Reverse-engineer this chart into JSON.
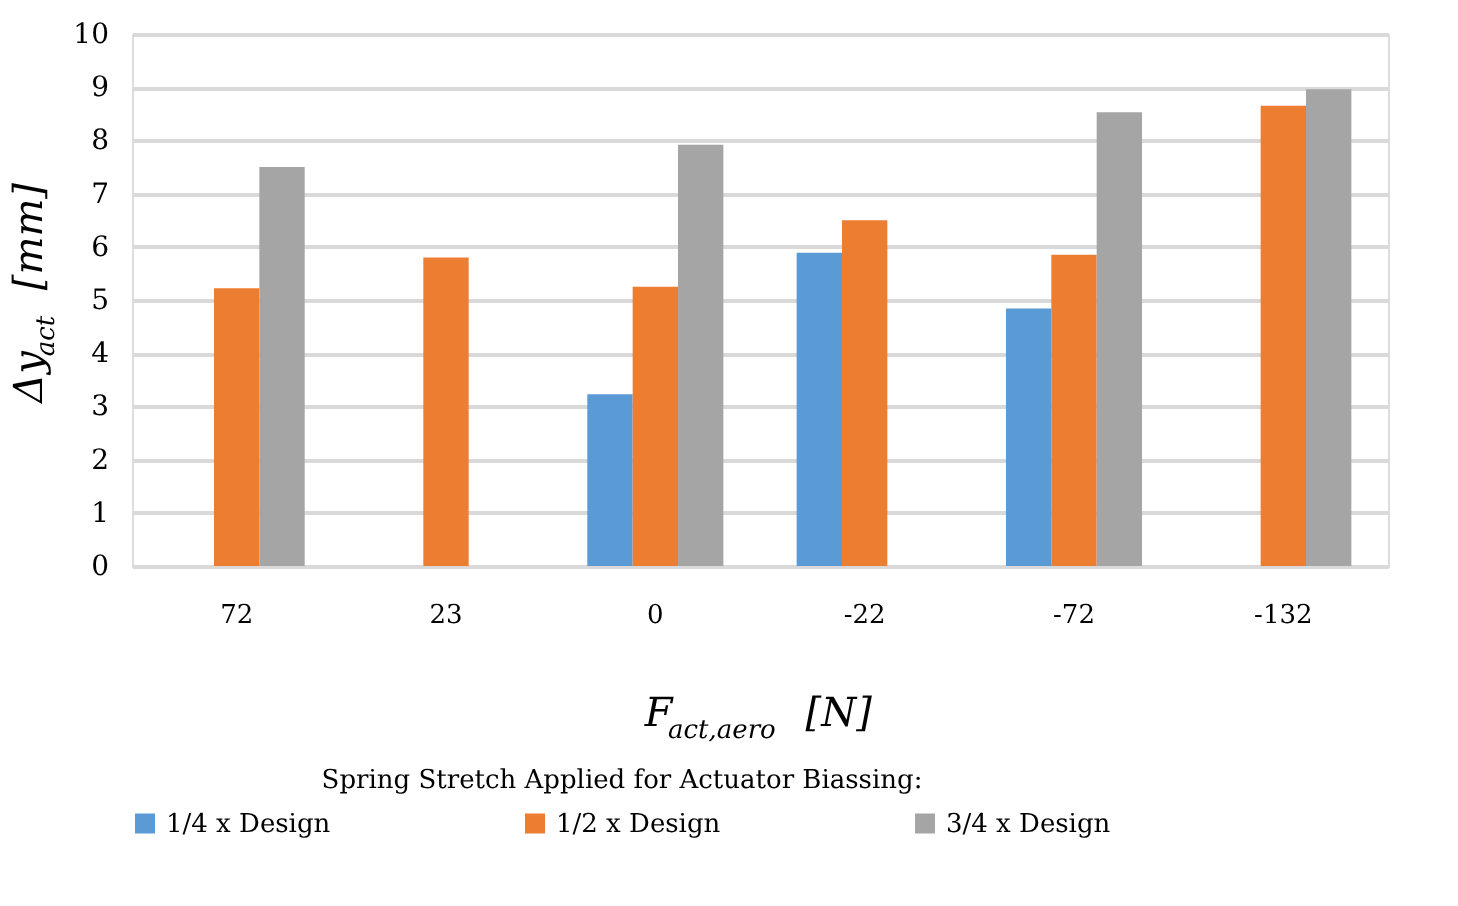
{
  "chart_data": {
    "type": "bar",
    "xlabel": "F$_{act,aero}$ [N]",
    "ylabel": "Δy$_{act}$ [mm]",
    "legend_title": "Spring Stretch Applied for Actuator Biassing:",
    "categories": [
      "72",
      "23",
      "0",
      "-22",
      "-72",
      "-132"
    ],
    "series": [
      {
        "name": "1/4 x Design",
        "color": "#5b9bd5",
        "values": [
          null,
          null,
          3.23,
          5.89,
          4.84,
          null
        ]
      },
      {
        "name": "1/2 x Design",
        "color": "#ed7d31",
        "values": [
          5.22,
          5.8,
          5.25,
          6.5,
          5.85,
          8.65
        ]
      },
      {
        "name": "3/4 x Design",
        "color": "#a5a5a5",
        "values": [
          7.5,
          null,
          7.92,
          null,
          8.53,
          8.96
        ]
      }
    ],
    "ylim": [
      0,
      10
    ],
    "yticks": [
      0,
      1,
      2,
      3,
      4,
      5,
      6,
      7,
      8,
      9,
      10
    ],
    "grid": "y",
    "legend": "bottom"
  }
}
